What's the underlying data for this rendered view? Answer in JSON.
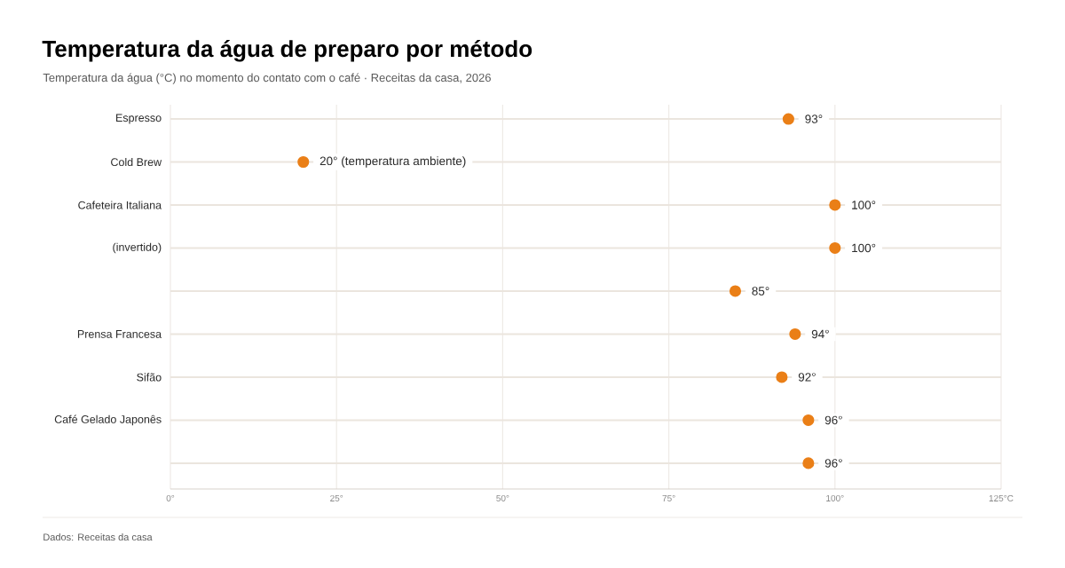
{
  "chart_data": {
    "type": "scatter",
    "title": "Temperatura da água de preparo por método",
    "subtitle": "Temperatura da água (°C) no momento do contato com o café · Receitas da casa, 2026",
    "annotations": [
      "Dados: Receitas da casa"
    ],
    "orientation": "horizontal",
    "categories": [
      "Espresso",
      "Cold Brew",
      "Cafeteira Italiana",
      "(invertido)",
      null,
      "Prensa Francesa",
      "Sifão",
      "Café Gelado Japonês",
      null
    ],
    "values": [
      93,
      20,
      100,
      100,
      85,
      94,
      92,
      96,
      96
    ],
    "value_labels": [
      "93°",
      "20° (temperatura ambiente)",
      "100°",
      "100°",
      "85°",
      "94°",
      "92°",
      "96°",
      "96°"
    ],
    "color": "#ea7f17",
    "xlim": [
      0,
      125
    ],
    "xticks": [
      {
        "value": 0,
        "label": "0°"
      },
      {
        "value": 25,
        "label": "25°"
      },
      {
        "value": 50,
        "label": "50°"
      },
      {
        "value": 75,
        "label": "75°"
      },
      {
        "value": 100,
        "label": "100°"
      },
      {
        "value": 125,
        "label": "125°C"
      }
    ],
    "grid": true,
    "marker": "circle"
  }
}
